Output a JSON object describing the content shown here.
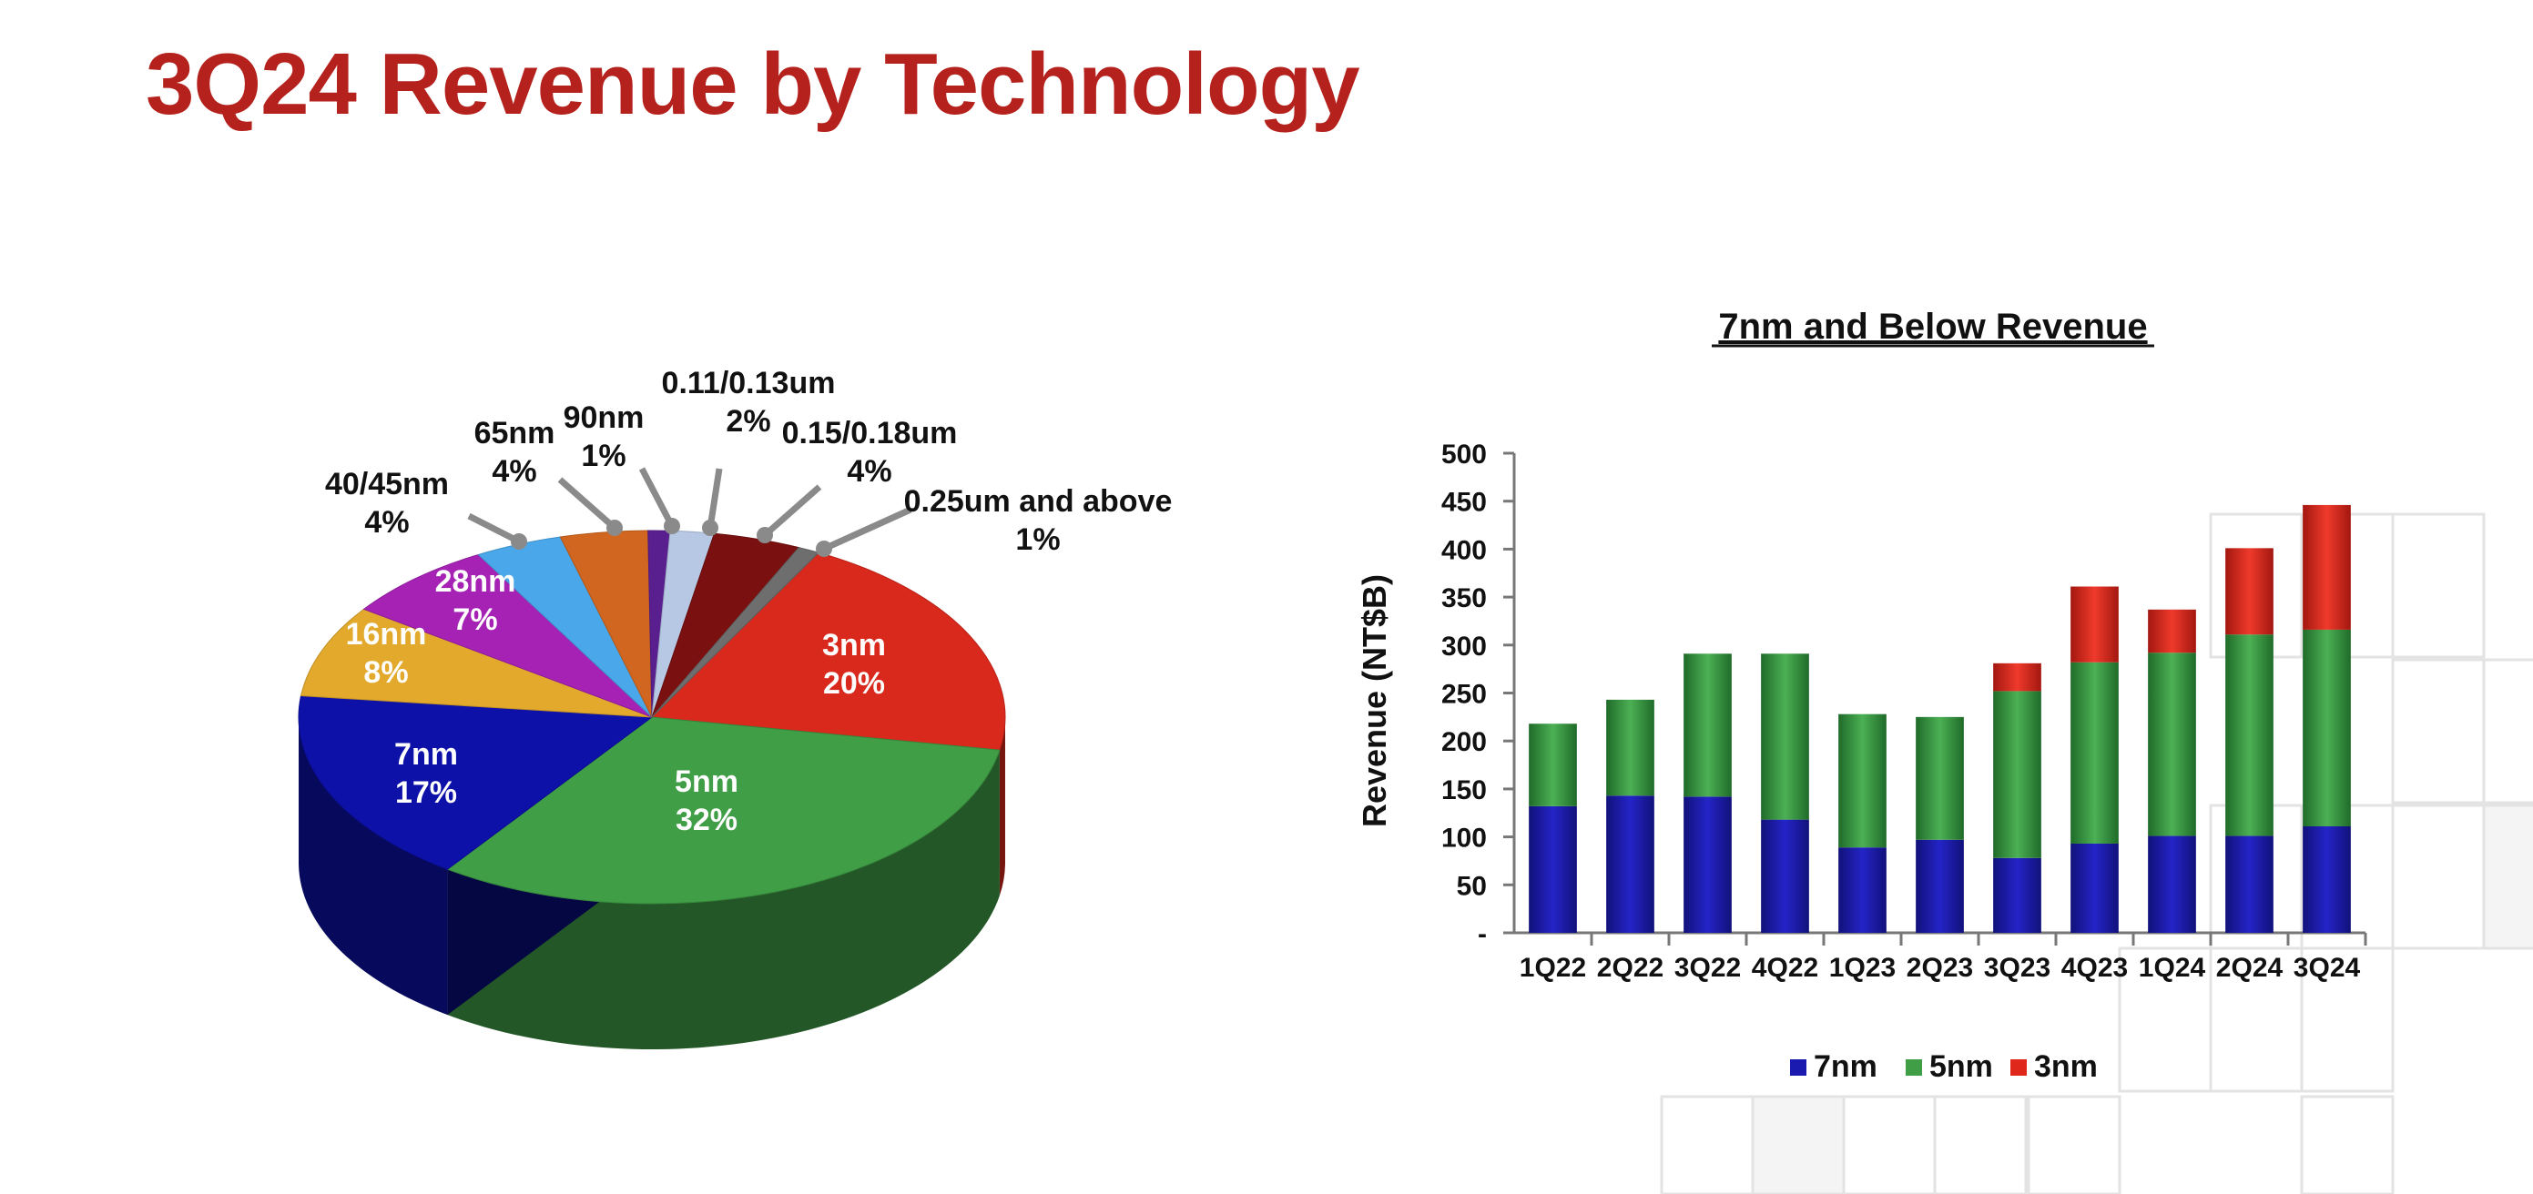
{
  "page": {
    "title": "3Q24 Revenue by Technology"
  },
  "chart_data": [
    {
      "type": "pie",
      "title": "",
      "slices": [
        {
          "label": "3nm",
          "value": 20,
          "pct_label": "20%",
          "color": "#d9281c",
          "label_inside": true
        },
        {
          "label": "5nm",
          "value": 32,
          "pct_label": "32%",
          "color": "#3f9e46",
          "label_inside": true
        },
        {
          "label": "7nm",
          "value": 17,
          "pct_label": "17%",
          "color": "#0d11a8",
          "label_inside": true
        },
        {
          "label": "16nm",
          "value": 8,
          "pct_label": "8%",
          "color": "#e2a92c",
          "label_inside": true
        },
        {
          "label": "28nm",
          "value": 7,
          "pct_label": "7%",
          "color": "#a522b5",
          "label_inside": true
        },
        {
          "label": "40/45nm",
          "value": 4,
          "pct_label": "4%",
          "color": "#4aa8ea",
          "label_inside": false
        },
        {
          "label": "65nm",
          "value": 4,
          "pct_label": "4%",
          "color": "#d0661f",
          "label_inside": false
        },
        {
          "label": "90nm",
          "value": 1,
          "pct_label": "1%",
          "color": "#5a1f8f",
          "label_inside": false
        },
        {
          "label": "0.11/0.13um",
          "value": 2,
          "pct_label": "2%",
          "color": "#b6c8e3",
          "label_inside": false
        },
        {
          "label": "0.15/0.18um",
          "value": 4,
          "pct_label": "4%",
          "color": "#7a1010",
          "label_inside": false
        },
        {
          "label": "0.25um and above",
          "value": 1,
          "pct_label": "1%",
          "color": "#6e6e6e",
          "label_inside": false
        }
      ]
    },
    {
      "type": "bar",
      "stacked": true,
      "title": "7nm and Below Revenue",
      "xlabel": "",
      "ylabel": "Revenue (NT$B)",
      "ylim": [
        0,
        500
      ],
      "yticks": [
        0,
        50,
        100,
        150,
        200,
        250,
        300,
        350,
        400,
        450,
        500
      ],
      "ytick_labels": [
        "-",
        "50",
        "100",
        "150",
        "200",
        "250",
        "300",
        "350",
        "400",
        "450",
        "500"
      ],
      "categories": [
        "1Q22",
        "2Q22",
        "3Q22",
        "4Q22",
        "1Q23",
        "2Q23",
        "3Q23",
        "4Q23",
        "1Q24",
        "2Q24",
        "3Q24"
      ],
      "series": [
        {
          "name": "7nm",
          "color": "#1a1ab0",
          "values": [
            132,
            143,
            142,
            118,
            89,
            97,
            78,
            93,
            101,
            101,
            111
          ]
        },
        {
          "name": "5nm",
          "color": "#3f9e46",
          "values": [
            86,
            100,
            149,
            173,
            139,
            128,
            174,
            189,
            191,
            210,
            205
          ]
        },
        {
          "name": "3nm",
          "color": "#e0271c",
          "values": [
            0,
            0,
            0,
            0,
            0,
            0,
            29,
            79,
            45,
            90,
            130
          ]
        }
      ],
      "legend": "bottom",
      "grid": false
    }
  ]
}
